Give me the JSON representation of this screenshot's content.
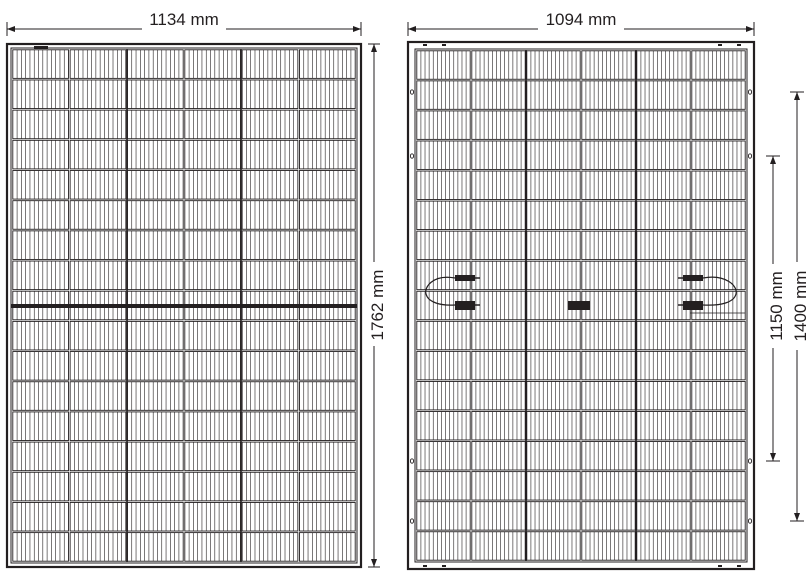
{
  "front_view": {
    "width_label": "1134 mm",
    "height_label": "1762 mm",
    "cell_rows": 17,
    "cell_columns": 6
  },
  "back_view": {
    "width_label": "1094 mm",
    "mounting_inner_label": "1150 mm",
    "mounting_outer_label": "1400 mm",
    "cell_rows": 17,
    "cell_columns": 6
  },
  "colors": {
    "line": "#231f20",
    "background": "#ffffff"
  }
}
